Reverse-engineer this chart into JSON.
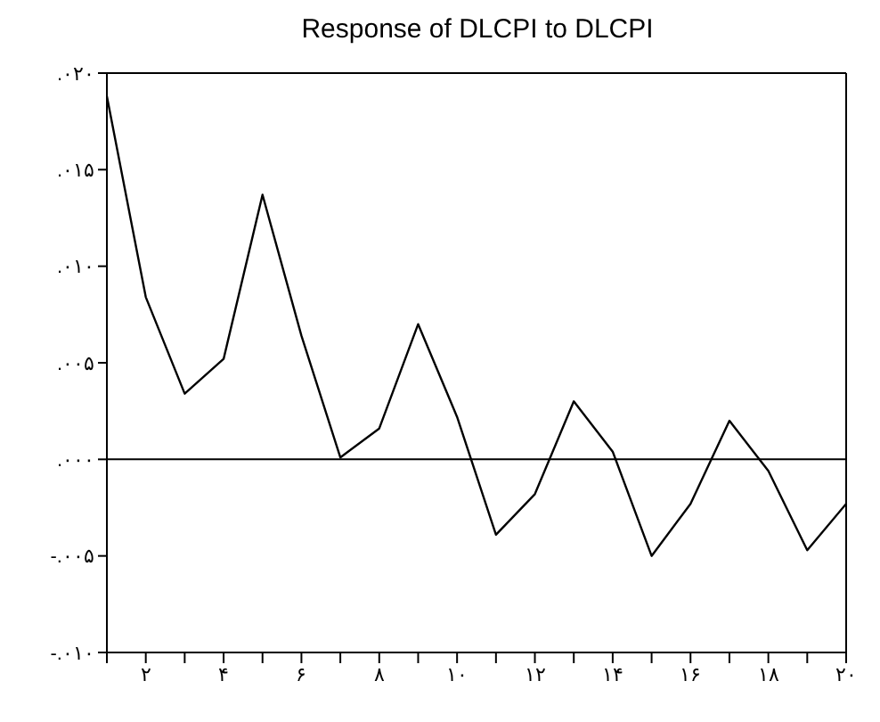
{
  "chart_data": {
    "type": "line",
    "title": "Response of DLCPI to DLCPI",
    "x": [
      1,
      2,
      3,
      4,
      5,
      6,
      7,
      8,
      9,
      10,
      11,
      12,
      13,
      14,
      15,
      16,
      17,
      18,
      19,
      20
    ],
    "series": [
      {
        "color": "#000000",
        "values": [
          0.0188,
          0.0084,
          0.0034,
          0.0052,
          0.0137,
          0.0064,
          0.0001,
          0.0016,
          0.007,
          0.0022,
          -0.0039,
          -0.0018,
          0.003,
          0.0004,
          -0.005,
          -0.0023,
          0.002,
          -0.0006,
          -0.0047,
          -0.0023
        ]
      }
    ],
    "xlim": [
      1,
      20
    ],
    "xticks": [
      {
        "value": 1,
        "label": null
      },
      {
        "value": 2,
        "label": "۲"
      },
      {
        "value": 3,
        "label": null
      },
      {
        "value": 4,
        "label": "۴"
      },
      {
        "value": 5,
        "label": null
      },
      {
        "value": 6,
        "label": "۶"
      },
      {
        "value": 7,
        "label": null
      },
      {
        "value": 8,
        "label": "۸"
      },
      {
        "value": 9,
        "label": null
      },
      {
        "value": 10,
        "label": "۱۰"
      },
      {
        "value": 11,
        "label": null
      },
      {
        "value": 12,
        "label": "۱۲"
      },
      {
        "value": 13,
        "label": null
      },
      {
        "value": 14,
        "label": "۱۴"
      },
      {
        "value": 15,
        "label": null
      },
      {
        "value": 16,
        "label": "۱۶"
      },
      {
        "value": 17,
        "label": null
      },
      {
        "value": 18,
        "label": "۱۸"
      },
      {
        "value": 19,
        "label": null
      },
      {
        "value": 20,
        "label": "۲۰"
      }
    ],
    "ylim": [
      -0.01,
      0.02
    ],
    "yticks": [
      {
        "value": -0.01,
        "label": "-.۰۱۰"
      },
      {
        "value": -0.005,
        "label": "-.۰۰۵"
      },
      {
        "value": 0,
        "label": ".۰۰۰"
      },
      {
        "value": 0.005,
        "label": ".۰۰۵"
      },
      {
        "value": 0.01,
        "label": ".۰۱۰"
      },
      {
        "value": 0.015,
        "label": ".۰۱۵"
      },
      {
        "value": 0.02,
        "label": ".۰۲۰"
      }
    ],
    "ref_lines": [
      {
        "axis": "y",
        "value": 0,
        "color": "#000000"
      }
    ],
    "grid": false,
    "legend": false,
    "marker": "none",
    "line_style": "solid"
  }
}
